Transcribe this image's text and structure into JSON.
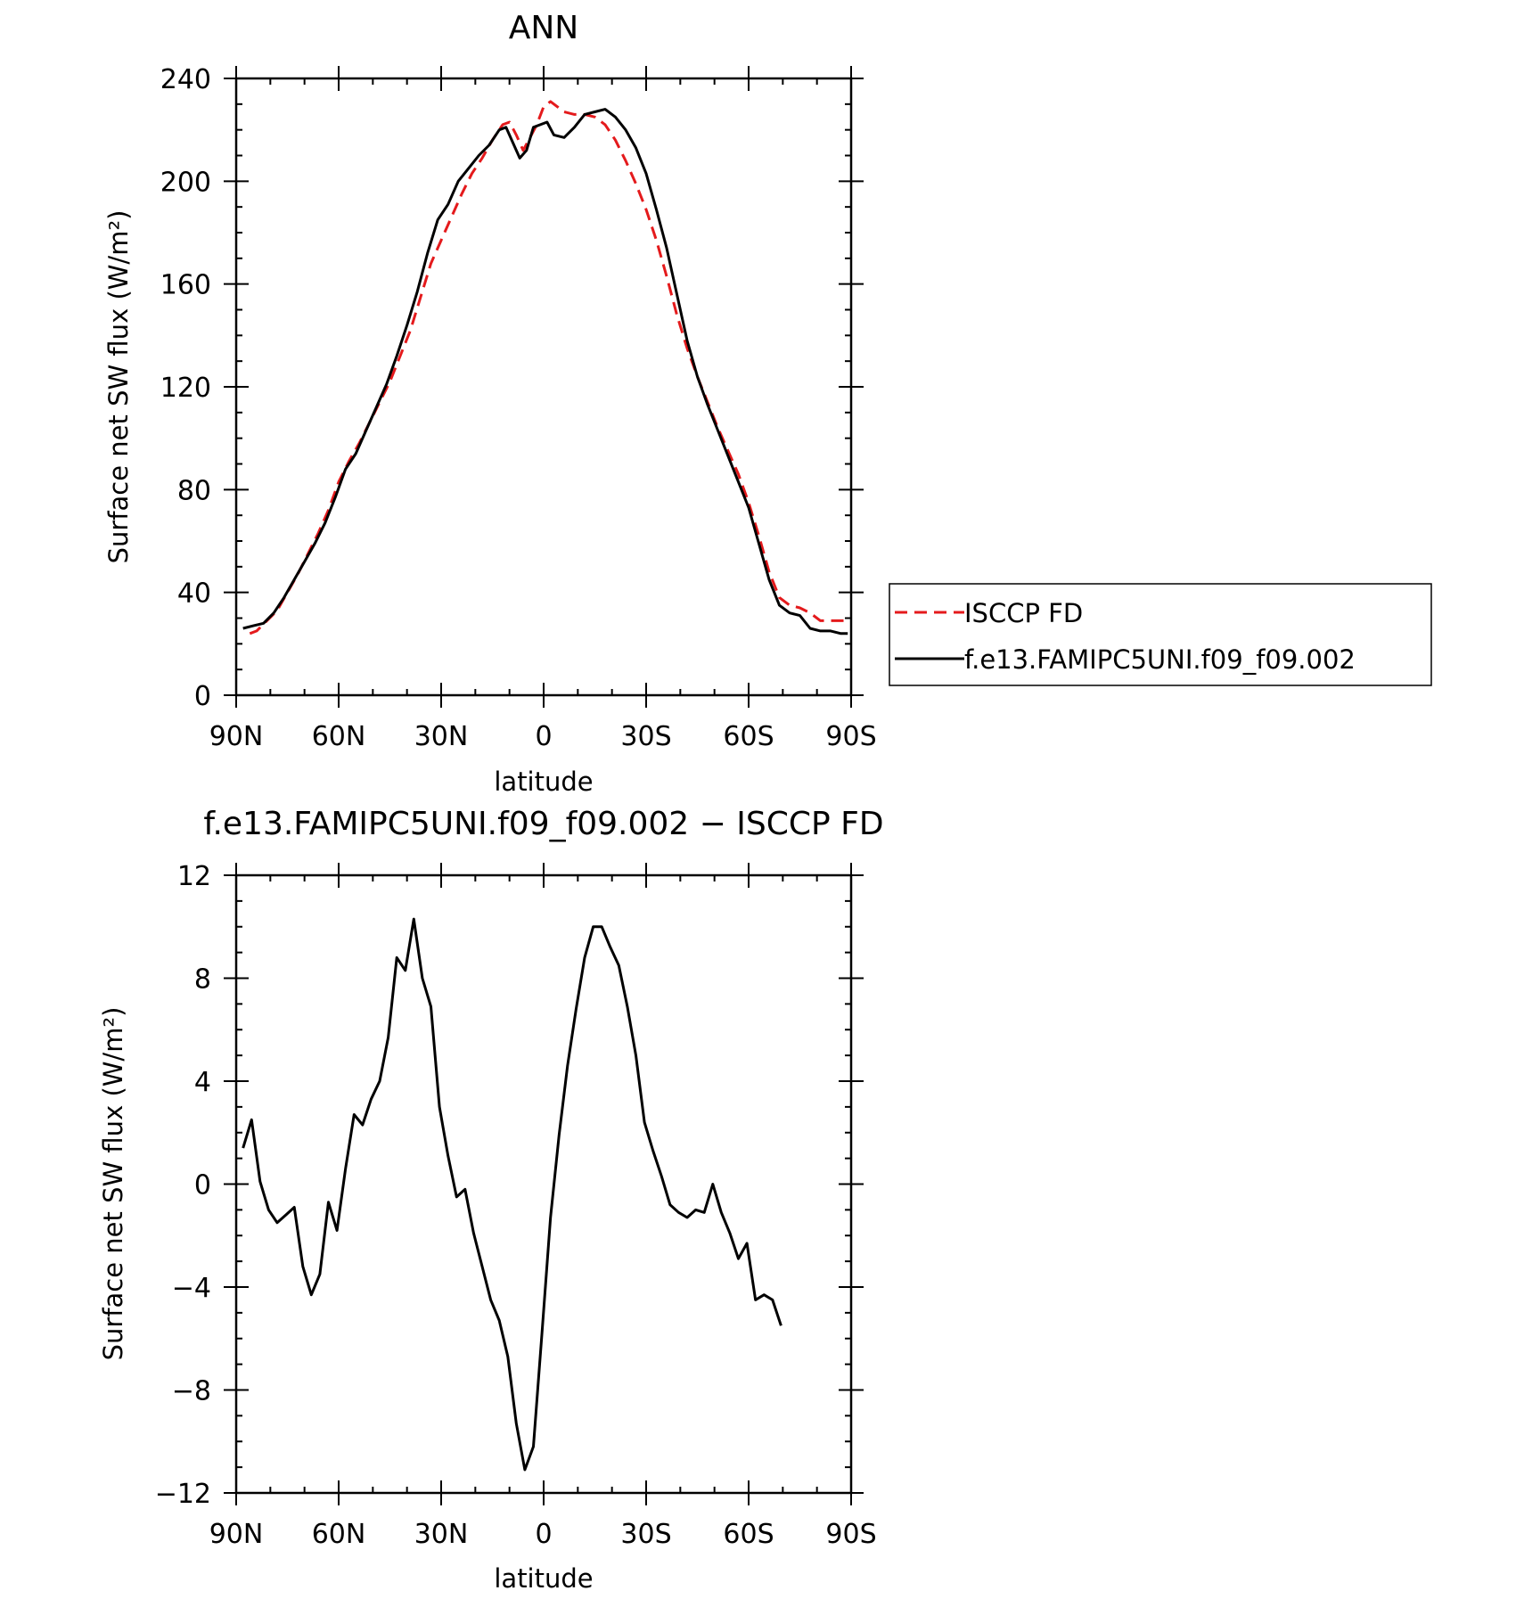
{
  "chart_data": [
    {
      "type": "line",
      "title": "ANN",
      "xlabel": "latitude",
      "ylabel": "Surface net SW flux (W/m²)",
      "xlim": [
        -90,
        90
      ],
      "ylim": [
        0,
        240
      ],
      "x_direction": "90N on left, 90S on right",
      "xticks": [
        {
          "value": -90,
          "label": "90N"
        },
        {
          "value": -60,
          "label": "60N"
        },
        {
          "value": -30,
          "label": "30N"
        },
        {
          "value": 0,
          "label": "0"
        },
        {
          "value": 30,
          "label": "30S"
        },
        {
          "value": 60,
          "label": "60S"
        },
        {
          "value": 90,
          "label": "90S"
        }
      ],
      "yticks": [
        {
          "value": 0,
          "label": "0"
        },
        {
          "value": 40,
          "label": "40"
        },
        {
          "value": 80,
          "label": "80"
        },
        {
          "value": 120,
          "label": "120"
        },
        {
          "value": 160,
          "label": "160"
        },
        {
          "value": 200,
          "label": "200"
        },
        {
          "value": 240,
          "label": "240"
        }
      ],
      "legend_placement": "right of plot, near bottom",
      "series": [
        {
          "name": "ISCCP FD",
          "color": "#e41a1c",
          "style": "dashed",
          "points": [
            [
              -86,
              24
            ],
            [
              -84,
              25
            ],
            [
              -81,
              29
            ],
            [
              -78,
              33
            ],
            [
              -75,
              40
            ],
            [
              -72,
              47
            ],
            [
              -69,
              55
            ],
            [
              -66,
              63
            ],
            [
              -63,
              72
            ],
            [
              -60,
              83
            ],
            [
              -57,
              91
            ],
            [
              -54,
              98
            ],
            [
              -51,
              106
            ],
            [
              -48,
              114
            ],
            [
              -45,
              122
            ],
            [
              -42,
              132
            ],
            [
              -39,
              142
            ],
            [
              -36,
              155
            ],
            [
              -33,
              168
            ],
            [
              -30,
              177
            ],
            [
              -27,
              186
            ],
            [
              -24,
              195
            ],
            [
              -21,
              203
            ],
            [
              -18,
              209
            ],
            [
              -15,
              216
            ],
            [
              -12,
              222
            ],
            [
              -10,
              223
            ],
            [
              -8,
              218
            ],
            [
              -6,
              212
            ],
            [
              -4,
              217
            ],
            [
              -2,
              222
            ],
            [
              0,
              229
            ],
            [
              2,
              231
            ],
            [
              4,
              229
            ],
            [
              6,
              227
            ],
            [
              9,
              226
            ],
            [
              12,
              226
            ],
            [
              15,
              225
            ],
            [
              18,
              222
            ],
            [
              21,
              216
            ],
            [
              24,
              208
            ],
            [
              27,
              199
            ],
            [
              30,
              189
            ],
            [
              33,
              177
            ],
            [
              36,
              163
            ],
            [
              39,
              148
            ],
            [
              42,
              135
            ],
            [
              45,
              124
            ],
            [
              48,
              114
            ],
            [
              51,
              104
            ],
            [
              54,
              95
            ],
            [
              57,
              86
            ],
            [
              60,
              75
            ],
            [
              63,
              62
            ],
            [
              66,
              48
            ],
            [
              69,
              38
            ],
            [
              72,
              35
            ],
            [
              75,
              34
            ],
            [
              78,
              32
            ],
            [
              81,
              29
            ],
            [
              84,
              29
            ],
            [
              87,
              29
            ],
            [
              89,
              29
            ]
          ]
        },
        {
          "name": "f.e13.FAMIPC5UNI.f09_f09.002",
          "color": "#000000",
          "style": "solid",
          "points": [
            [
              -88,
              26
            ],
            [
              -85,
              27
            ],
            [
              -82,
              28
            ],
            [
              -79,
              32
            ],
            [
              -76,
              38
            ],
            [
              -73,
              45
            ],
            [
              -70,
              52
            ],
            [
              -67,
              59
            ],
            [
              -64,
              67
            ],
            [
              -61,
              77
            ],
            [
              -58,
              88
            ],
            [
              -55,
              94
            ],
            [
              -52,
              103
            ],
            [
              -49,
              112
            ],
            [
              -46,
              121
            ],
            [
              -43,
              132
            ],
            [
              -40,
              144
            ],
            [
              -37,
              157
            ],
            [
              -34,
              172
            ],
            [
              -31,
              185
            ],
            [
              -28,
              191
            ],
            [
              -25,
              200
            ],
            [
              -22,
              205
            ],
            [
              -19,
              210
            ],
            [
              -16,
              214
            ],
            [
              -13,
              220
            ],
            [
              -11,
              221
            ],
            [
              -9,
              215
            ],
            [
              -7,
              209
            ],
            [
              -5,
              212
            ],
            [
              -3,
              221
            ],
            [
              -1,
              222
            ],
            [
              1,
              223
            ],
            [
              3,
              218
            ],
            [
              6,
              217
            ],
            [
              9,
              221
            ],
            [
              12,
              226
            ],
            [
              15,
              227
            ],
            [
              18,
              228
            ],
            [
              21,
              225
            ],
            [
              24,
              220
            ],
            [
              27,
              213
            ],
            [
              30,
              203
            ],
            [
              33,
              189
            ],
            [
              36,
              174
            ],
            [
              39,
              156
            ],
            [
              42,
              138
            ],
            [
              45,
              124
            ],
            [
              48,
              113
            ],
            [
              51,
              103
            ],
            [
              54,
              93
            ],
            [
              57,
              83
            ],
            [
              60,
              73
            ],
            [
              63,
              59
            ],
            [
              66,
              45
            ],
            [
              69,
              35
            ],
            [
              72,
              32
            ],
            [
              75,
              31
            ],
            [
              78,
              26
            ],
            [
              81,
              25
            ],
            [
              84,
              25
            ],
            [
              87,
              24
            ],
            [
              89,
              24
            ]
          ]
        }
      ]
    },
    {
      "type": "line",
      "title": "f.e13.FAMIPC5UNI.f09_f09.002 − ISCCP FD",
      "xlabel": "latitude",
      "ylabel": "Surface net SW flux (W/m²)",
      "xlim": [
        -90,
        90
      ],
      "ylim": [
        -12,
        12
      ],
      "x_direction": "90N on left, 90S on right",
      "xticks": [
        {
          "value": -90,
          "label": "90N"
        },
        {
          "value": -60,
          "label": "60N"
        },
        {
          "value": -30,
          "label": "30N"
        },
        {
          "value": 0,
          "label": "0"
        },
        {
          "value": 30,
          "label": "30S"
        },
        {
          "value": 60,
          "label": "60S"
        },
        {
          "value": 90,
          "label": "90S"
        }
      ],
      "yticks": [
        {
          "value": -12,
          "label": "−12"
        },
        {
          "value": -8,
          "label": "−8"
        },
        {
          "value": -4,
          "label": "−4"
        },
        {
          "value": 0,
          "label": "0"
        },
        {
          "value": 4,
          "label": "4"
        },
        {
          "value": 8,
          "label": "8"
        },
        {
          "value": 12,
          "label": "12"
        }
      ],
      "series": [
        {
          "color": "#000000",
          "style": "solid",
          "points": [
            [
              -88,
              1.4
            ],
            [
              -85.5,
              2.5
            ],
            [
              -83,
              0.1
            ],
            [
              -80.5,
              -1
            ],
            [
              -78,
              -1.5
            ],
            [
              -75.5,
              -1.2
            ],
            [
              -73,
              -0.9
            ],
            [
              -70.5,
              -3.2
            ],
            [
              -68,
              -4.3
            ],
            [
              -65.5,
              -3.5
            ],
            [
              -63,
              -0.7
            ],
            [
              -60.5,
              -1.8
            ],
            [
              -58,
              0.6
            ],
            [
              -55.5,
              2.7
            ],
            [
              -53,
              2.3
            ],
            [
              -50.5,
              3.3
            ],
            [
              -48,
              4
            ],
            [
              -45.5,
              5.7
            ],
            [
              -43,
              8.8
            ],
            [
              -40.5,
              8.3
            ],
            [
              -38,
              10.3
            ],
            [
              -35.5,
              8
            ],
            [
              -33,
              6.9
            ],
            [
              -30.5,
              3
            ],
            [
              -28,
              1.1
            ],
            [
              -25.5,
              -0.5
            ],
            [
              -23,
              -0.2
            ],
            [
              -20.5,
              -1.9
            ],
            [
              -18,
              -3.2
            ],
            [
              -15.5,
              -4.5
            ],
            [
              -13,
              -5.3
            ],
            [
              -10.5,
              -6.7
            ],
            [
              -8,
              -9.3
            ],
            [
              -5.5,
              -11.1
            ],
            [
              -3,
              -10.2
            ],
            [
              -0.5,
              -5.8
            ],
            [
              2,
              -1.3
            ],
            [
              4.5,
              1.9
            ],
            [
              7,
              4.6
            ],
            [
              9.5,
              6.8
            ],
            [
              12,
              8.8
            ],
            [
              14.5,
              10
            ],
            [
              17,
              10
            ],
            [
              19.5,
              9.2
            ],
            [
              22,
              8.5
            ],
            [
              24.5,
              6.9
            ],
            [
              27,
              5
            ],
            [
              29.5,
              2.4
            ],
            [
              32,
              1.3
            ],
            [
              34.5,
              0.3
            ],
            [
              37,
              -0.8
            ],
            [
              39.5,
              -1.1
            ],
            [
              42,
              -1.3
            ],
            [
              44.5,
              -1
            ],
            [
              47,
              -1.1
            ],
            [
              49.5,
              0
            ],
            [
              52,
              -1.1
            ],
            [
              54.5,
              -1.9
            ],
            [
              57,
              -2.9
            ],
            [
              59.5,
              -2.3
            ],
            [
              62,
              -4.5
            ],
            [
              64.5,
              -4.3
            ],
            [
              67,
              -4.5
            ],
            [
              69.5,
              -5.5
            ]
          ]
        }
      ]
    }
  ]
}
